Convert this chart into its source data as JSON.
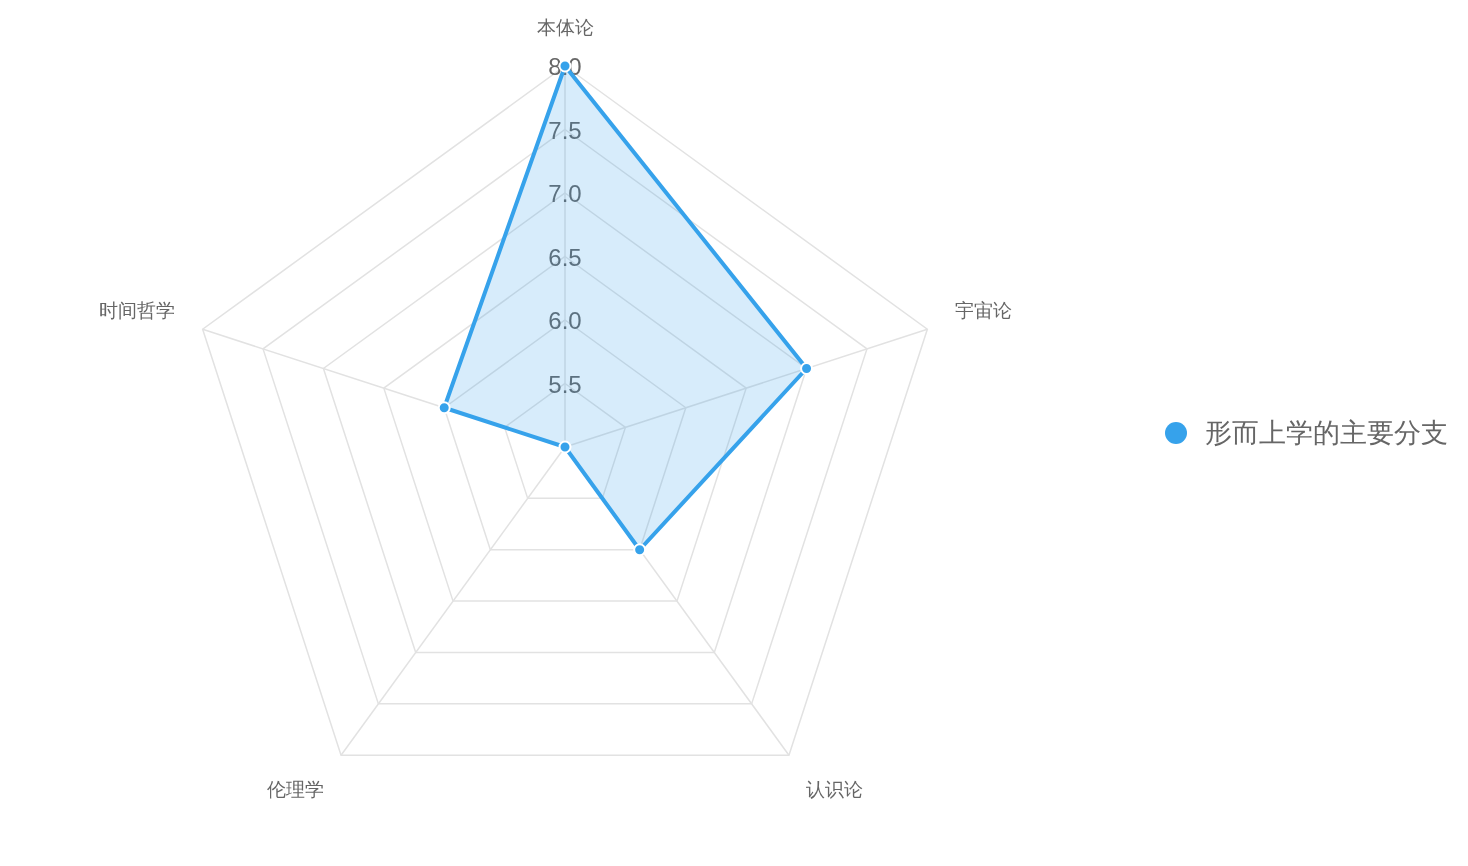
{
  "chart_data": {
    "type": "radar",
    "categories": [
      "本体论",
      "宇宙论",
      "认识论",
      "伦理学",
      "时间哲学"
    ],
    "series": [
      {
        "name": "形而上学的主要分支",
        "color": "#36a2eb",
        "values": [
          8,
          7,
          6,
          5,
          6
        ]
      }
    ],
    "ylim": [
      5,
      8
    ],
    "yticks": [
      5.5,
      {
        "value": 6,
        "label": "6.0"
      },
      6.5,
      {
        "value": 7,
        "label": "7.0"
      },
      7.5,
      {
        "value": 8,
        "label": "8.0"
      }
    ],
    "grid": true,
    "legend": "right",
    "marker": "circle"
  }
}
